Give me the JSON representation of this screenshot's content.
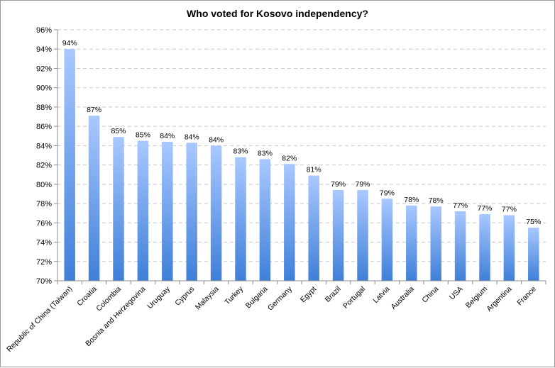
{
  "chart_data": {
    "type": "bar",
    "title": "Who voted for Kosovo independency?",
    "xlabel": "",
    "ylabel": "",
    "categories": [
      "Republic of China (Taiwan)",
      "Croatia",
      "Colombia",
      "Bosnia and Herzegovina",
      "Uruguay",
      "Cyprus",
      "Malaysia",
      "Turkey",
      "Bulgaria",
      "Germany",
      "Egypt",
      "Brazil",
      "Portugal",
      "Latvia",
      "Australia",
      "China",
      "USA",
      "Belgium",
      "Argentina",
      "France"
    ],
    "values": [
      94.0,
      87.1,
      84.9,
      84.5,
      84.4,
      84.3,
      84.0,
      82.8,
      82.6,
      82.1,
      80.9,
      79.4,
      79.4,
      78.5,
      77.8,
      77.7,
      77.2,
      76.9,
      76.8,
      75.5
    ],
    "data_labels": [
      "94%",
      "87%",
      "85%",
      "85%",
      "84%",
      "84%",
      "84%",
      "83%",
      "83%",
      "82%",
      "81%",
      "79%",
      "79%",
      "79%",
      "78%",
      "78%",
      "77%",
      "77%",
      "77%",
      "75%"
    ],
    "ylim": [
      70,
      96
    ],
    "yticks": [
      70,
      72,
      74,
      76,
      78,
      80,
      82,
      84,
      86,
      88,
      90,
      92,
      94,
      96
    ],
    "ytick_labels": [
      "70%",
      "72%",
      "74%",
      "76%",
      "78%",
      "80%",
      "82%",
      "84%",
      "86%",
      "88%",
      "90%",
      "92%",
      "94%",
      "96%"
    ],
    "grid": true,
    "legend": "none",
    "colors": {
      "bar_top": "#a9c8ff",
      "bar_bottom": "#3f7fd8",
      "grid": "#c8c8c8",
      "axis": "#8c8c8c"
    }
  }
}
